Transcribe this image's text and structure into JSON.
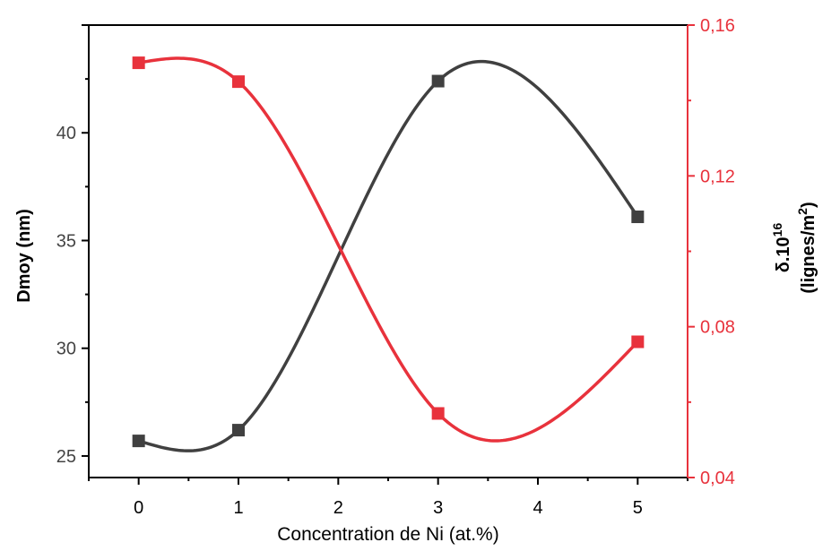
{
  "chart_data": {
    "type": "line",
    "title": "",
    "x": [
      0,
      1,
      3,
      5
    ],
    "xlabel": "Concentration de Ni (at.%)",
    "xlim": [
      -0.5,
      5.5
    ],
    "xticks": [
      "0",
      "1",
      "2",
      "3",
      "4",
      "5"
    ],
    "ylabel_left": "Dmoy (nm)",
    "ylim_left": [
      24,
      45
    ],
    "yticks_left": [
      "25",
      "30",
      "35",
      "40"
    ],
    "ylabel_right_main": "δ.10",
    "ylabel_right_exp": "16",
    "ylabel_right_sub_prefix": "(lignes/m",
    "ylabel_right_sub_exp": "2",
    "ylabel_right_sub_suffix": ")",
    "ylim_right": [
      0.04,
      0.16
    ],
    "yticks_right": [
      "0,04",
      "0,08",
      "0,12",
      "0,16"
    ],
    "grid": false,
    "series": [
      {
        "axis": "left",
        "color": "#404040",
        "marker": "square",
        "values": [
          25.7,
          26.2,
          42.4,
          36.1
        ]
      },
      {
        "axis": "right",
        "color": "#e8323c",
        "marker": "square",
        "values": [
          0.15,
          0.145,
          0.057,
          0.076
        ]
      }
    ]
  }
}
